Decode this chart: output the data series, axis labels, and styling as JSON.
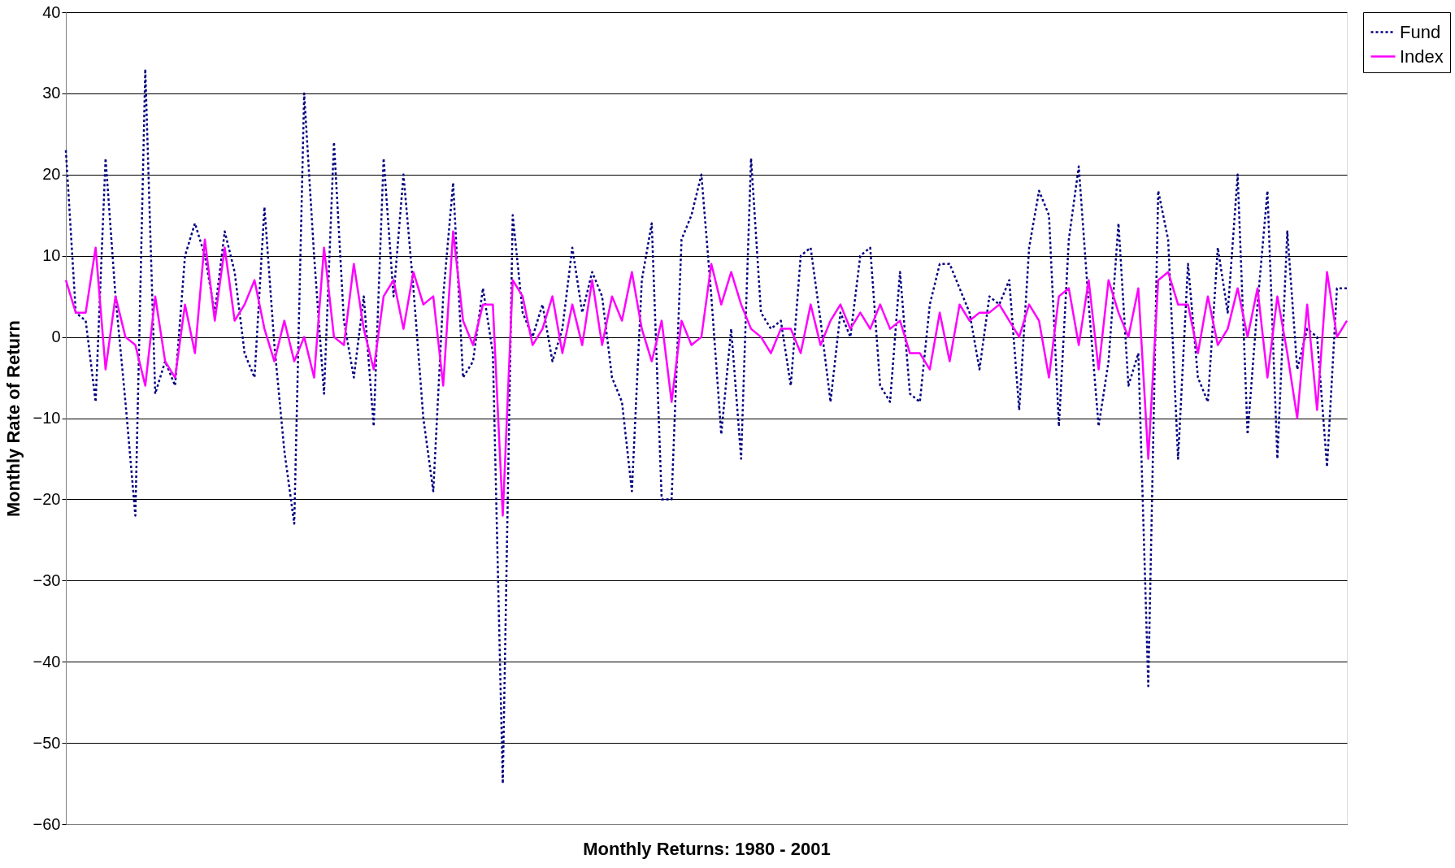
{
  "chart_data": {
    "type": "line",
    "xlabel": "Monthly Returns: 1980 - 2001",
    "ylabel": "Monthly Rate of Return",
    "categories": [
      null,
      null,
      null,
      null,
      null,
      null,
      null,
      null,
      null,
      null,
      null,
      null,
      null,
      null,
      null,
      null,
      null,
      null,
      null,
      null,
      null,
      null,
      null,
      null,
      null,
      null,
      null,
      null,
      null,
      null,
      null,
      null,
      null,
      null,
      null,
      null,
      null,
      null,
      null,
      null,
      null,
      null,
      null,
      null,
      null,
      null,
      null,
      null,
      null,
      null,
      null,
      null,
      null,
      null,
      null,
      null,
      null,
      null,
      null,
      null,
      null,
      null,
      null,
      null,
      null,
      null,
      null,
      null,
      null,
      null,
      null,
      null,
      null,
      null,
      null,
      null,
      null,
      null,
      null,
      null,
      null,
      null,
      null,
      null,
      null,
      null,
      null,
      null,
      null,
      null,
      null,
      null,
      null,
      null,
      null,
      null,
      null,
      null,
      null,
      null,
      null,
      null,
      null,
      null,
      null,
      null,
      null,
      null,
      null,
      null,
      null,
      null,
      null,
      null,
      null,
      null,
      null,
      null,
      null,
      null,
      null,
      null,
      null,
      null,
      null,
      null,
      null,
      null,
      null,
      null
    ],
    "series": [
      {
        "name": "Fund",
        "color": "#000080",
        "line_style": "dotted",
        "values": [
          23,
          3,
          2,
          -8,
          22,
          5,
          -8,
          -22,
          33,
          -7,
          -3,
          -6,
          10,
          14,
          10,
          3,
          13,
          8,
          -2,
          -5,
          16,
          -1,
          -14,
          -23,
          30,
          10,
          -7,
          24,
          2,
          -5,
          5,
          -11,
          22,
          5,
          20,
          6,
          -10,
          -19,
          5,
          19,
          -5,
          -3,
          6,
          -2,
          -55,
          15,
          3,
          0,
          4,
          -3,
          1,
          11,
          3,
          8,
          5,
          -5,
          -8,
          -19,
          7,
          14,
          -20,
          -20,
          12,
          15,
          20,
          5,
          -12,
          1,
          -15,
          22,
          3,
          1,
          2,
          -6,
          10,
          11,
          2,
          -8,
          3,
          0,
          10,
          11,
          -6,
          -8,
          8,
          -7,
          -8,
          4,
          9,
          9,
          6,
          3,
          -4,
          5,
          4,
          7,
          -9,
          11,
          18,
          15,
          -11,
          12,
          21,
          4,
          -11,
          -3,
          14,
          -6,
          -2,
          -43,
          18,
          12,
          -15,
          9,
          -5,
          -8,
          11,
          3,
          20,
          -12,
          4,
          18,
          -15,
          13,
          -4,
          1,
          0,
          -16,
          6,
          6
        ]
      },
      {
        "name": "Index",
        "color": "#ff00ff",
        "line_style": "solid",
        "values": [
          7,
          3,
          3,
          11,
          -4,
          5,
          0,
          -1,
          -6,
          5,
          -3,
          -5,
          4,
          -2,
          12,
          2,
          11,
          2,
          4,
          7,
          1,
          -3,
          2,
          -3,
          0,
          -5,
          11,
          0,
          -1,
          9,
          1,
          -4,
          5,
          7,
          1,
          8,
          4,
          5,
          -6,
          13,
          2,
          -1,
          4,
          4,
          -22,
          7,
          5,
          -1,
          1,
          5,
          -2,
          4,
          -1,
          7,
          -1,
          5,
          2,
          8,
          1,
          -3,
          2,
          -8,
          2,
          -1,
          0,
          9,
          4,
          8,
          4,
          1,
          0,
          -2,
          1,
          1,
          -2,
          4,
          -1,
          2,
          4,
          1,
          3,
          1,
          4,
          1,
          2,
          -2,
          -2,
          -4,
          3,
          -3,
          4,
          2,
          3,
          3,
          4,
          2,
          0,
          4,
          2,
          -5,
          5,
          6,
          -1,
          7,
          -4,
          7,
          3,
          0,
          6,
          -15,
          7,
          8,
          4,
          4,
          -2,
          5,
          -1,
          1,
          6,
          0,
          6,
          -5,
          5,
          -2,
          -10,
          4,
          -9,
          8,
          0,
          2
        ]
      }
    ],
    "ylim": [
      -60,
      40
    ],
    "yticks": [
      -60,
      -50,
      -40,
      -30,
      -20,
      -10,
      0,
      10,
      20,
      30,
      40
    ],
    "grid": "y",
    "legend": "right",
    "marker": "none"
  }
}
